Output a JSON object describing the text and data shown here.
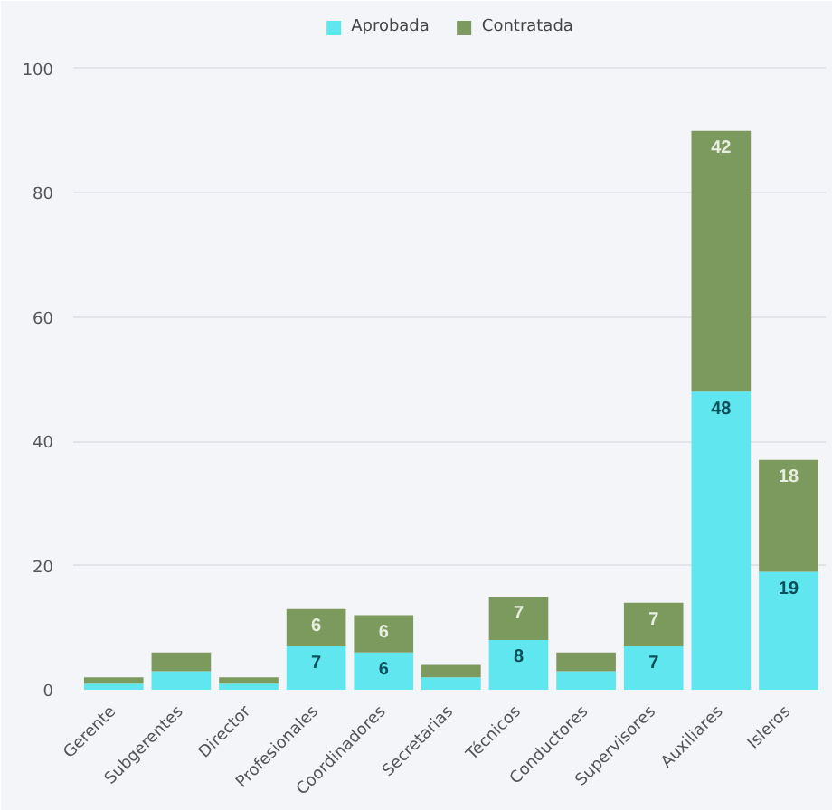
{
  "chart_data": {
    "type": "bar",
    "stacked": true,
    "categories": [
      "Gerente",
      "Subgerentes",
      "Director",
      "Profesionales",
      "Coordinadores",
      "Secretarias",
      "Técnicos",
      "Conductores",
      "Supervisores",
      "Auxiliares",
      "Isleros"
    ],
    "series": [
      {
        "name": "Aprobada",
        "color": "#5fe6ee",
        "values": [
          1,
          3,
          1,
          7,
          6,
          2,
          8,
          3,
          7,
          48,
          19
        ],
        "value_labels": [
          null,
          null,
          null,
          "7",
          "6",
          null,
          "8",
          null,
          "7",
          "48",
          "19"
        ]
      },
      {
        "name": "Contratada",
        "color": "#7c9a5e",
        "values": [
          1,
          3,
          1,
          6,
          6,
          2,
          7,
          3,
          7,
          42,
          18
        ],
        "value_labels": [
          null,
          null,
          null,
          "6",
          "6",
          null,
          "7",
          null,
          "7",
          "42",
          "18"
        ]
      }
    ],
    "ylim": [
      0,
      108
    ],
    "yticks": [
      0,
      20,
      40,
      60,
      80,
      100
    ],
    "grid": "y",
    "legend": "top"
  }
}
